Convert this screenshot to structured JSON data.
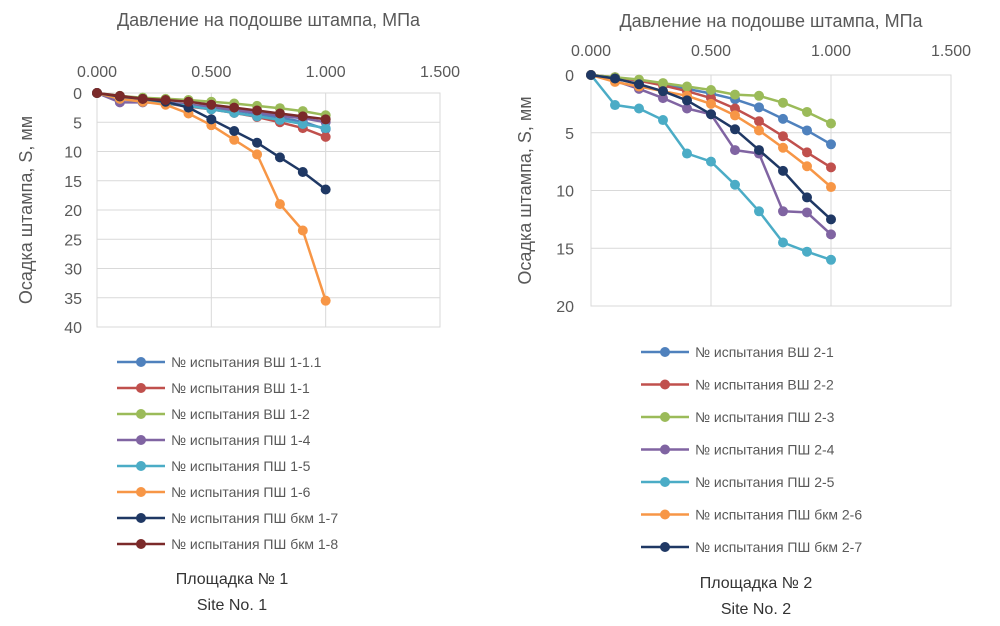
{
  "chart_data": [
    {
      "type": "line",
      "title": "Давление на подошве штампа, МПа",
      "xlabel": "Давление на подошве штампа, МПа",
      "ylabel": "Осадка штампа, S, мм",
      "xlim": [
        0,
        1.5
      ],
      "ylim": [
        0,
        40
      ],
      "x_ticks": [
        "0.000",
        "0.500",
        "1.000",
        "1.500"
      ],
      "y_ticks": [
        "0",
        "5",
        "10",
        "15",
        "20",
        "25",
        "30",
        "35",
        "40"
      ],
      "y_reversed": true,
      "grid": true,
      "legend_position": "bottom",
      "caption": [
        "Площадка № 1",
        "Site No. 1"
      ],
      "series": [
        {
          "name": "№ испытания ВШ 1-1.1",
          "color": "#4f81bd",
          "x": [
            0,
            0.1,
            0.2,
            0.3,
            0.4,
            0.5,
            0.6,
            0.7,
            0.8,
            0.9,
            1.0
          ],
          "y": [
            0,
            0.8,
            1.3,
            1.6,
            2.0,
            2.5,
            3.0,
            3.6,
            4.2,
            4.9,
            6.2
          ]
        },
        {
          "name": "№ испытания ВШ 1-1",
          "color": "#c0504d",
          "x": [
            0,
            0.1,
            0.2,
            0.3,
            0.4,
            0.5,
            0.6,
            0.7,
            0.8,
            0.9,
            1.0
          ],
          "y": [
            0,
            0.9,
            1.4,
            1.8,
            2.3,
            2.8,
            3.4,
            4.1,
            5.0,
            6.0,
            7.5
          ]
        },
        {
          "name": "№ испытания ВШ 1-2",
          "color": "#9bbb59",
          "x": [
            0,
            0.1,
            0.2,
            0.3,
            0.4,
            0.5,
            0.6,
            0.7,
            0.8,
            0.9,
            1.0
          ],
          "y": [
            0,
            0.5,
            0.8,
            1.0,
            1.2,
            1.5,
            1.8,
            2.2,
            2.6,
            3.1,
            3.8
          ]
        },
        {
          "name": "№ испытания ПШ 1-4",
          "color": "#8064a2",
          "x": [
            0,
            0.1,
            0.2,
            0.3,
            0.4,
            0.5,
            0.6,
            0.7,
            0.8,
            0.9,
            1.0
          ],
          "y": [
            0,
            1.6,
            1.6,
            1.7,
            2.0,
            2.3,
            2.9,
            3.3,
            3.9,
            4.3,
            5.0
          ]
        },
        {
          "name": "№ испытания ПШ 1-5",
          "color": "#4bacc6",
          "x": [
            0,
            0.1,
            0.2,
            0.3,
            0.4,
            0.5,
            0.6,
            0.7,
            0.8,
            0.9,
            1.0
          ],
          "y": [
            0,
            1.0,
            1.5,
            1.8,
            2.2,
            2.8,
            3.4,
            4.0,
            4.6,
            5.3,
            6.0
          ]
        },
        {
          "name": "№ испытания ПШ 1-6",
          "color": "#f79646",
          "x": [
            0,
            0.1,
            0.2,
            0.3,
            0.4,
            0.5,
            0.6,
            0.7,
            0.8,
            0.9,
            1.0
          ],
          "y": [
            0,
            1.0,
            1.5,
            2.0,
            3.5,
            5.5,
            8.0,
            10.5,
            19.0,
            23.5,
            35.5
          ]
        },
        {
          "name": "№ испытания ПШ бкм 1-7",
          "color": "#1f3864",
          "x": [
            0,
            0.1,
            0.2,
            0.3,
            0.4,
            0.5,
            0.6,
            0.7,
            0.8,
            0.9,
            1.0
          ],
          "y": [
            0,
            0.6,
            1.0,
            1.5,
            2.5,
            4.5,
            6.5,
            8.5,
            11.0,
            13.5,
            16.5
          ]
        },
        {
          "name": "№ испытания ПШ бкм 1-8",
          "color": "#7b2a2a",
          "x": [
            0,
            0.1,
            0.2,
            0.3,
            0.4,
            0.5,
            0.6,
            0.7,
            0.8,
            0.9,
            1.0
          ],
          "y": [
            0,
            0.5,
            1.0,
            1.2,
            1.5,
            2.0,
            2.5,
            3.0,
            3.5,
            4.0,
            4.5
          ]
        }
      ]
    },
    {
      "type": "line",
      "title": "Давление на подошве штампа, МПа",
      "xlabel": "Давление на подошве штампа, МПа",
      "ylabel": "Осадка штампа, S, мм",
      "xlim": [
        0,
        1.5
      ],
      "ylim": [
        0,
        20
      ],
      "x_ticks": [
        "0.000",
        "0.500",
        "1.000",
        "1.500"
      ],
      "y_ticks": [
        "0",
        "5",
        "10",
        "15",
        "20"
      ],
      "y_reversed": true,
      "grid": true,
      "legend_position": "bottom",
      "caption": [
        "Площадка № 2",
        "Site No. 2"
      ],
      "series": [
        {
          "name": "№ испытания ВШ 2-1",
          "color": "#4f81bd",
          "x": [
            0,
            0.1,
            0.2,
            0.3,
            0.4,
            0.5,
            0.6,
            0.7,
            0.8,
            0.9,
            1.0
          ],
          "y": [
            0,
            0.2,
            0.5,
            0.8,
            1.2,
            1.6,
            2.1,
            2.8,
            3.8,
            4.8,
            6.0
          ]
        },
        {
          "name": "№ испытания ВШ 2-2",
          "color": "#c0504d",
          "x": [
            0,
            0.1,
            0.2,
            0.3,
            0.4,
            0.5,
            0.6,
            0.7,
            0.8,
            0.9,
            1.0
          ],
          "y": [
            0,
            0.2,
            0.5,
            0.9,
            1.4,
            2.0,
            2.9,
            4.0,
            5.3,
            6.7,
            8.0
          ]
        },
        {
          "name": "№ испытания ПШ 2-3",
          "color": "#9bbb59",
          "x": [
            0,
            0.1,
            0.2,
            0.3,
            0.4,
            0.5,
            0.6,
            0.7,
            0.8,
            0.9,
            1.0
          ],
          "y": [
            0,
            0.2,
            0.4,
            0.7,
            1.0,
            1.3,
            1.7,
            1.8,
            2.4,
            3.2,
            4.2
          ]
        },
        {
          "name": "№ испытания ПШ 2-4",
          "color": "#8064a2",
          "x": [
            0,
            0.1,
            0.2,
            0.3,
            0.4,
            0.5,
            0.6,
            0.7,
            0.8,
            0.9,
            1.0
          ],
          "y": [
            0,
            0.5,
            1.2,
            2.0,
            2.9,
            3.4,
            6.5,
            6.8,
            11.8,
            11.9,
            13.8
          ]
        },
        {
          "name": "№ испытания ПШ 2-5",
          "color": "#4bacc6",
          "x": [
            0,
            0.1,
            0.2,
            0.3,
            0.4,
            0.5,
            0.6,
            0.7,
            0.8,
            0.9,
            1.0
          ],
          "y": [
            0,
            2.6,
            2.9,
            3.9,
            6.8,
            7.5,
            9.5,
            11.8,
            14.5,
            15.3,
            16.0
          ]
        },
        {
          "name": "№ испытания ПШ бкм 2-6",
          "color": "#f79646",
          "x": [
            0,
            0.1,
            0.2,
            0.3,
            0.4,
            0.5,
            0.6,
            0.7,
            0.8,
            0.9,
            1.0
          ],
          "y": [
            0,
            0.6,
            1.0,
            1.4,
            1.8,
            2.5,
            3.5,
            4.8,
            6.3,
            7.9,
            9.7
          ]
        },
        {
          "name": "№ испытания ПШ бкм 2-7",
          "color": "#1f3864",
          "x": [
            0,
            0.1,
            0.2,
            0.3,
            0.4,
            0.5,
            0.6,
            0.7,
            0.8,
            0.9,
            1.0
          ],
          "y": [
            0,
            0.3,
            0.8,
            1.4,
            2.2,
            3.4,
            4.7,
            6.5,
            8.3,
            10.6,
            12.5
          ]
        }
      ]
    }
  ]
}
